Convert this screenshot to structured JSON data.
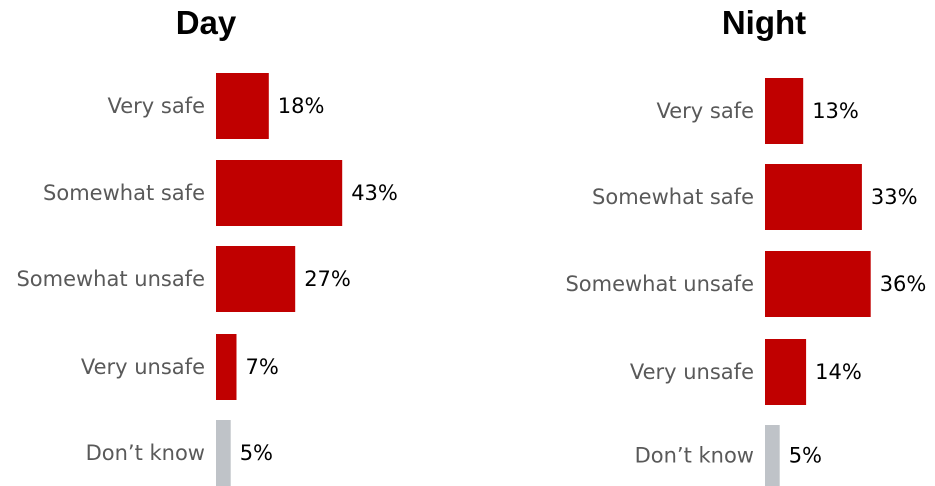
{
  "chart_data": [
    {
      "type": "bar",
      "orientation": "horizontal",
      "title": "Day",
      "categories": [
        "Very safe",
        "Somewhat safe",
        "Somewhat unsafe",
        "Very unsafe",
        "Don’t know"
      ],
      "values": [
        18,
        43,
        27,
        7,
        5
      ],
      "value_labels": [
        "18%",
        "43%",
        "27%",
        "7%",
        "5%"
      ],
      "unit": "%",
      "grid": false,
      "legend": "none",
      "colors": [
        "#C00000",
        "#C00000",
        "#C00000",
        "#C00000",
        "#BFC3C8"
      ]
    },
    {
      "type": "bar",
      "orientation": "horizontal",
      "title": "Night",
      "categories": [
        "Very safe",
        "Somewhat safe",
        "Somewhat unsafe",
        "Very unsafe",
        "Don’t know"
      ],
      "values": [
        13,
        33,
        36,
        14,
        5
      ],
      "value_labels": [
        "13%",
        "33%",
        "36%",
        "14%",
        "5%"
      ],
      "unit": "%",
      "grid": false,
      "legend": "none",
      "colors": [
        "#C00000",
        "#C00000",
        "#C00000",
        "#C00000",
        "#BFC3C8"
      ]
    }
  ],
  "colors": {
    "bar": "#C00000",
    "dont_know_bar": "#BFC3C8",
    "category_label": "#595959",
    "value_label": "#000000"
  }
}
